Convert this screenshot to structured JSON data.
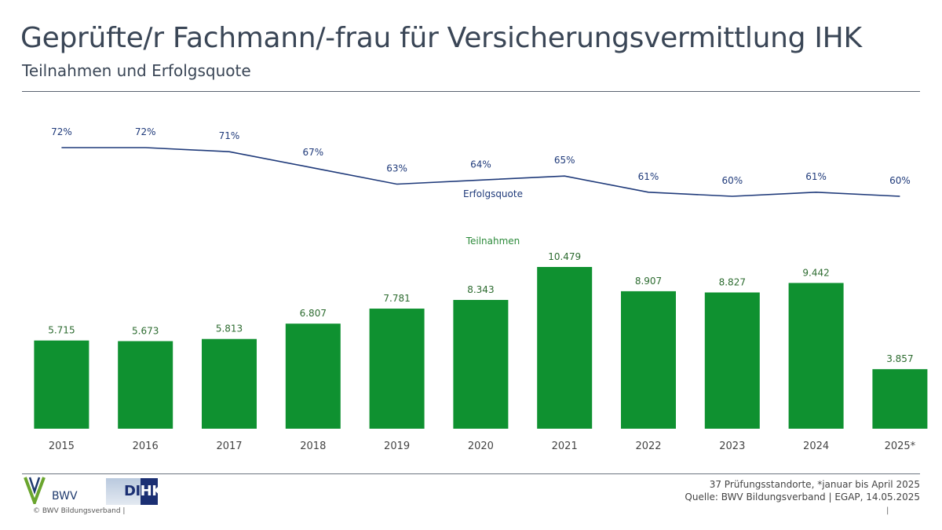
{
  "header": {
    "title": "Geprüfte/r Fachmann/-frau für Versicherungsvermittlung IHK",
    "subtitle": "Teilnahmen und Erfolgsquote"
  },
  "chart_data": {
    "type": "bar",
    "categories": [
      "2015",
      "2016",
      "2017",
      "2018",
      "2019",
      "2020",
      "2021",
      "2022",
      "2023",
      "2024",
      "2025*"
    ],
    "series": [
      {
        "name": "Teilnahmen",
        "type": "bar",
        "values": [
          5715,
          5673,
          5813,
          6807,
          7781,
          8343,
          10479,
          8907,
          8827,
          9442,
          3857
        ],
        "labels": [
          "5.715",
          "5.673",
          "5.813",
          "6.807",
          "7.781",
          "8.343",
          "10.479",
          "8.907",
          "8.827",
          "9.442",
          "3.857"
        ],
        "color": "#0f9130"
      },
      {
        "name": "Erfolgsquote",
        "type": "line",
        "values": [
          72,
          72,
          71,
          67,
          63,
          64,
          65,
          61,
          60,
          61,
          60
        ],
        "labels": [
          "72%",
          "72%",
          "71%",
          "67%",
          "63%",
          "64%",
          "65%",
          "61%",
          "60%",
          "61%",
          "60%"
        ],
        "color": "#1f3a7a"
      }
    ],
    "ylim_bars": [
      0,
      11500
    ],
    "ylim_line": [
      55,
      75
    ],
    "grid": false,
    "legend": "inline labels"
  },
  "footer": {
    "note1": "37 Prüfungsstandorte, *januar bis April 2025",
    "note2": "Quelle: BWV Bildungsverband | EGAP, 14.05.2025",
    "copyright": "© BWV Bildungsverband |",
    "pipe": "|",
    "logos": {
      "bwv": {
        "text": "BWV",
        "color": "#6aa52e"
      },
      "dihk": {
        "text_left": "DI",
        "text_right": "HK",
        "color": "#1b2f73"
      }
    }
  }
}
